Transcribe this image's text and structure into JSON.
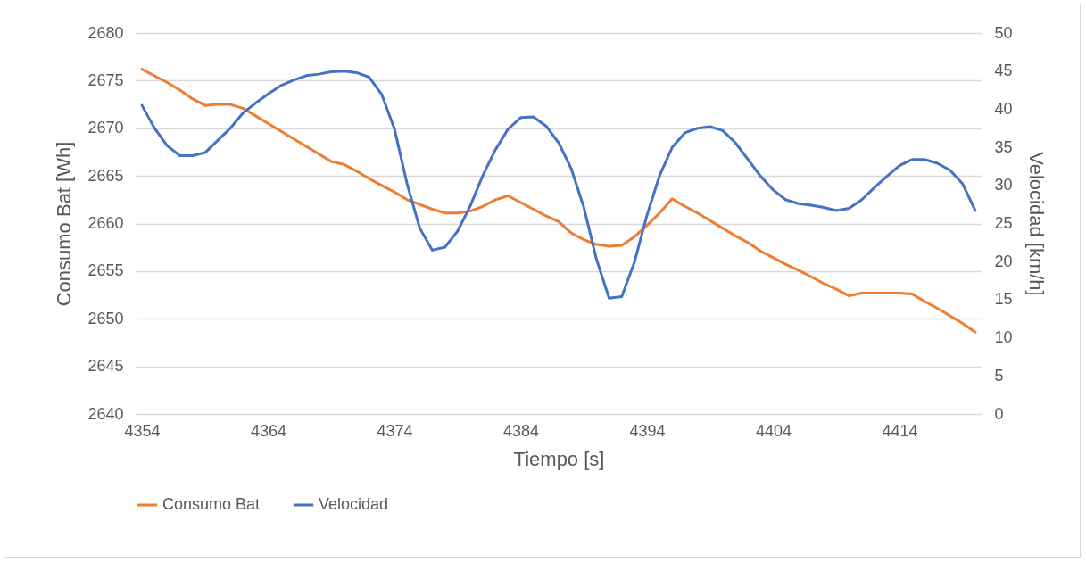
{
  "chart_data": {
    "type": "line",
    "xlabel": "Tiempo [s]",
    "ylabel": "Consumo Bat [Wh]",
    "y2label": "Velocidad [km/h]",
    "x": [
      4354,
      4355,
      4356,
      4357,
      4358,
      4359,
      4360,
      4361,
      4362,
      4363,
      4364,
      4365,
      4366,
      4367,
      4368,
      4369,
      4370,
      4371,
      4372,
      4373,
      4374,
      4375,
      4376,
      4377,
      4378,
      4379,
      4380,
      4381,
      4382,
      4383,
      4384,
      4385,
      4386,
      4387,
      4388,
      4389,
      4390,
      4391,
      4392,
      4393,
      4394,
      4395,
      4396,
      4397,
      4398,
      4399,
      4400,
      4401,
      4402,
      4403,
      4404,
      4405,
      4406,
      4407,
      4408,
      4409,
      4410,
      4411,
      4412,
      4413,
      4414,
      4415,
      4416,
      4417,
      4418,
      4419,
      4420
    ],
    "series": [
      {
        "name": "Consumo Bat",
        "color": "#ed7d31",
        "values": [
          2676.2,
          2675.5,
          2674.8,
          2674.0,
          2673.1,
          2672.4,
          2672.5,
          2672.5,
          2672.1,
          2671.3,
          2670.5,
          2669.7,
          2668.9,
          2668.1,
          2667.3,
          2666.5,
          2666.2,
          2665.5,
          2664.7,
          2664.0,
          2663.3,
          2662.5,
          2662.0,
          2661.5,
          2661.1,
          2661.1,
          2661.3,
          2661.8,
          2662.5,
          2662.9,
          2662.2,
          2661.5,
          2660.8,
          2660.2,
          2659.0,
          2658.3,
          2657.8,
          2657.6,
          2657.7,
          2658.6,
          2659.8,
          2661.1,
          2662.6,
          2661.8,
          2661.1,
          2660.3,
          2659.5,
          2658.7,
          2658.0,
          2657.1,
          2656.4,
          2655.7,
          2655.1,
          2654.4,
          2653.7,
          2653.1,
          2652.4,
          2652.7,
          2652.7,
          2652.7,
          2652.7,
          2652.6,
          2651.8,
          2651.1,
          2650.3,
          2649.5,
          2648.6
        ]
      },
      {
        "name": "Velocidad",
        "color": "#4472c4",
        "axis": "y2",
        "values": [
          40.5,
          37.5,
          35.2,
          33.9,
          33.9,
          34.3,
          35.9,
          37.5,
          39.5,
          40.8,
          42.0,
          43.1,
          43.8,
          44.4,
          44.6,
          44.9,
          45.0,
          44.8,
          44.2,
          41.9,
          37.4,
          30.2,
          24.4,
          21.5,
          21.9,
          24.0,
          27.3,
          31.3,
          34.7,
          37.4,
          38.9,
          39.0,
          37.8,
          35.6,
          32.2,
          27.1,
          20.3,
          15.2,
          15.4,
          19.9,
          26.1,
          31.3,
          35.0,
          36.9,
          37.5,
          37.7,
          37.2,
          35.6,
          33.4,
          31.2,
          29.4,
          28.1,
          27.6,
          27.4,
          27.1,
          26.7,
          27.0,
          28.1,
          29.7,
          31.2,
          32.6,
          33.4,
          33.4,
          32.9,
          32.0,
          30.2,
          26.7
        ]
      }
    ],
    "xlim": [
      4353.5,
      4420.5
    ],
    "xticks": [
      4354,
      4364,
      4374,
      4384,
      4394,
      4404,
      4414
    ],
    "ylim": [
      2640,
      2680
    ],
    "yticks": [
      2640,
      2645,
      2650,
      2655,
      2660,
      2665,
      2670,
      2675,
      2680
    ],
    "y2lim": [
      0,
      50
    ],
    "y2ticks": [
      0,
      5,
      10,
      15,
      20,
      25,
      30,
      35,
      40,
      45,
      50
    ],
    "grid": "y",
    "legend": "bottom",
    "marker": "none",
    "line_style": "solid"
  }
}
